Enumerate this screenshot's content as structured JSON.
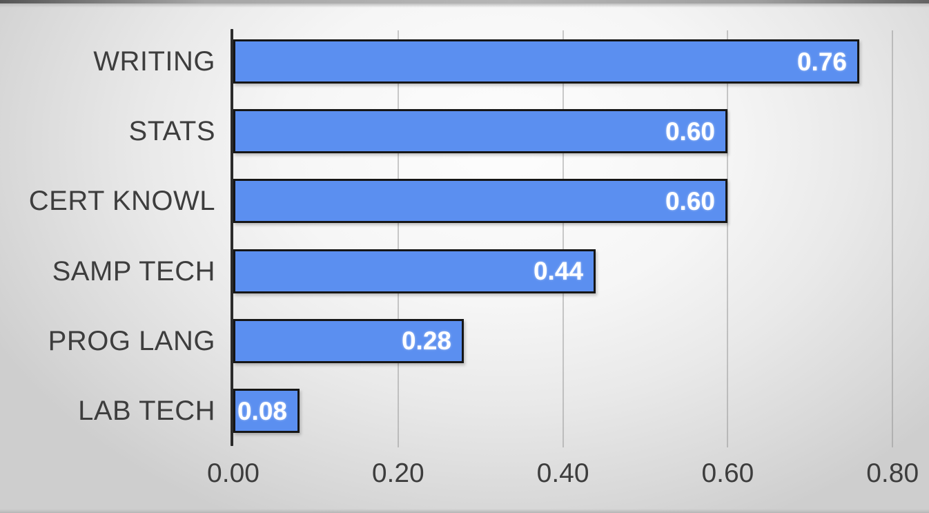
{
  "chart_data": {
    "type": "bar",
    "orientation": "horizontal",
    "title": "",
    "xlabel": "",
    "ylabel": "",
    "categories": [
      "WRITING",
      "STATS",
      "CERT KNOWL",
      "SAMP TECH",
      "PROG LANG",
      "LAB TECH"
    ],
    "values": [
      0.76,
      0.6,
      0.6,
      0.44,
      0.28,
      0.08
    ],
    "value_labels": [
      "0.76",
      "0.60",
      "0.60",
      "0.44",
      "0.28",
      "0.08"
    ],
    "x_ticks": [
      "0.00",
      "0.20",
      "0.40",
      "0.60",
      "0.80"
    ],
    "x_tick_values": [
      0.0,
      0.2,
      0.4,
      0.6,
      0.8
    ],
    "xlim": [
      0.0,
      0.8
    ],
    "grid": "vertical-only",
    "legend": "none",
    "value_label_position": "inside-end",
    "colors": {
      "bar_fill": "#5B8FF0",
      "bar_border": "#161616",
      "value_label": "#FFFFFF",
      "category_label": "#3D3D3D",
      "tick_label": "#3D3D3D",
      "axis_line": "#2B2B2B",
      "gridline": "#9E9E9E"
    }
  }
}
